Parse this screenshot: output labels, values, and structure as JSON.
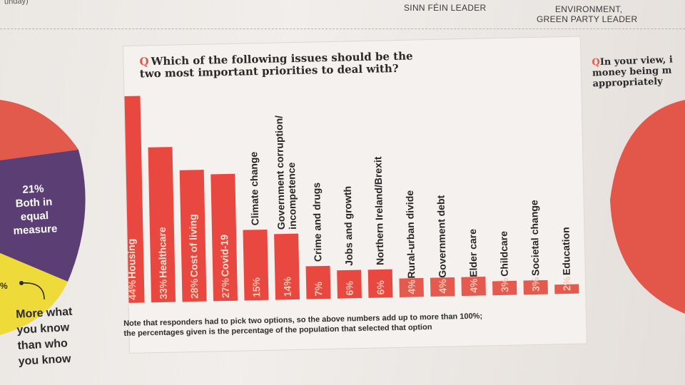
{
  "top": {
    "left_fragment": "unday)",
    "label_sinn_fein": "SINN FÉIN LEADER",
    "label_green_line1": "ENVIRONMENT,",
    "label_green_line2": "GREEN PARTY LEADER"
  },
  "card": {
    "q_mark": "Q",
    "question_line1": "Which of the following issues should be the",
    "question_line2": "two most important priorities to deal with?",
    "note_line1": "Note that responders had to pick two options, so the above numbers add up to more than 100%;",
    "note_line2": "the percentages given is the percentage of the population that selected that option"
  },
  "right": {
    "q_mark": "Q",
    "line1": "In your view, i",
    "line2": "money being m",
    "line3": "appropriately"
  },
  "left": {
    "pie_pct": "21%",
    "pie_line1": "Both in",
    "pie_line2": "equal",
    "pie_line3": "measure",
    "pct_fragment": "%",
    "caption_line1": "More what",
    "caption_line2": "you know",
    "caption_line3": "than who",
    "caption_line4": "you know"
  },
  "colors": {
    "bar": "#e8483f",
    "bar_small": "#e45a4f",
    "pie_red": "#e25a4b",
    "pie_purple": "#5b3f74",
    "pie_yellow": "#eedb3a"
  },
  "chart_data": {
    "type": "bar",
    "categories": [
      "Housing",
      "Healthcare",
      "Cost of living",
      "Covid-19",
      "Climate change",
      "Government corruption/ incompetence",
      "Crime and drugs",
      "Jobs and growth",
      "Northern Ireland/Brexit",
      "Rural-urban divide",
      "Government debt",
      "Elder care",
      "Childcare",
      "Societal change",
      "Education"
    ],
    "values": [
      44,
      33,
      28,
      27,
      15,
      14,
      7,
      6,
      6,
      4,
      4,
      4,
      3,
      3,
      2
    ],
    "value_labels": [
      "44%",
      "33%",
      "28%",
      "27%",
      "15%",
      "14%",
      "7%",
      "6%",
      "6%",
      "4%",
      "4%",
      "4%",
      "3%",
      "3%",
      "2%"
    ],
    "ylim": [
      0,
      44
    ]
  }
}
